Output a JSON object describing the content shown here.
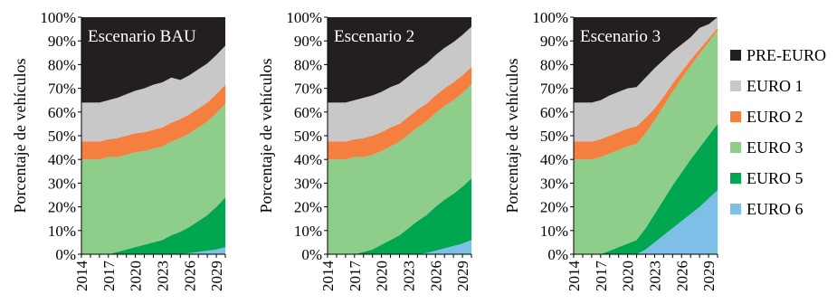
{
  "chart_data": [
    {
      "type": "area",
      "stacked": true,
      "title": "Escenario BAU",
      "ylabel": "Porcentaje de vehículos",
      "ylim": [
        0,
        100
      ],
      "yticks": [
        "0%",
        "10%",
        "20%",
        "30%",
        "40%",
        "50%",
        "60%",
        "70%",
        "80%",
        "90%",
        "100%"
      ],
      "xticks": [
        "2014",
        "2017",
        "2020",
        "2023",
        "2026",
        "2029"
      ],
      "x": [
        2014,
        2015,
        2016,
        2017,
        2018,
        2019,
        2020,
        2021,
        2022,
        2023,
        2024,
        2025,
        2026,
        2027,
        2028,
        2029,
        2030
      ],
      "series": [
        {
          "name": "EURO 6",
          "values": [
            0,
            0,
            0,
            0,
            0,
            0,
            0,
            0,
            0,
            0,
            0,
            0,
            0.5,
            1,
            1.5,
            2,
            3
          ]
        },
        {
          "name": "EURO 5",
          "values": [
            0,
            0,
            0,
            0,
            1,
            2,
            3,
            4,
            5,
            6,
            8,
            9.5,
            11,
            13,
            15,
            18,
            21
          ]
        },
        {
          "name": "EURO 3",
          "values": [
            40,
            40,
            40,
            41,
            40,
            40,
            40,
            39.5,
            39.5,
            39.5,
            39.5,
            39.5,
            39.5,
            39.5,
            39.5,
            39.5,
            39.5
          ]
        },
        {
          "name": "EURO 2",
          "values": [
            7.5,
            7.5,
            7.5,
            7.5,
            8,
            8,
            8,
            8,
            8,
            8,
            8,
            8,
            8,
            8,
            8,
            8,
            8
          ]
        },
        {
          "name": "EURO 1",
          "values": [
            16.5,
            16.5,
            16.5,
            16.5,
            17,
            17.5,
            18,
            18.5,
            19,
            19,
            19,
            16.5,
            16.5,
            16.5,
            16.5,
            16.5,
            16.5
          ]
        },
        {
          "name": "PRE-EURO",
          "values": [
            36,
            36,
            36,
            35,
            34,
            32.5,
            31,
            30,
            28.5,
            27.5,
            25.5,
            26.5,
            24.5,
            22,
            19.5,
            16,
            12
          ]
        }
      ]
    },
    {
      "type": "area",
      "stacked": true,
      "title": "Escenario 2",
      "ylabel": "Porcentaje de vehículos",
      "ylim": [
        0,
        100
      ],
      "yticks": [
        "0%",
        "10%",
        "20%",
        "30%",
        "40%",
        "50%",
        "60%",
        "70%",
        "80%",
        "90%",
        "100%"
      ],
      "xticks": [
        "2014",
        "2017",
        "2020",
        "2023",
        "2026",
        "2029"
      ],
      "x": [
        2014,
        2015,
        2016,
        2017,
        2018,
        2019,
        2020,
        2021,
        2022,
        2023,
        2024,
        2025,
        2026,
        2027,
        2028,
        2029,
        2030
      ],
      "series": [
        {
          "name": "EURO 6",
          "values": [
            0,
            0,
            0,
            0,
            0,
            0,
            0,
            0,
            0,
            0,
            0,
            0.5,
            1.5,
            2.5,
            3.5,
            4.5,
            6
          ]
        },
        {
          "name": "EURO 5",
          "values": [
            0,
            0,
            0,
            0,
            1,
            2,
            4,
            6,
            8,
            11,
            14,
            16,
            18.5,
            20.5,
            22,
            24,
            26
          ]
        },
        {
          "name": "EURO 3",
          "values": [
            40,
            40,
            40,
            41,
            40,
            40,
            39.5,
            39.5,
            39.5,
            39.5,
            39.5,
            39.5,
            39.5,
            39.5,
            39.5,
            39.5,
            39.5
          ]
        },
        {
          "name": "EURO 2",
          "values": [
            7.5,
            7.5,
            7.5,
            7.5,
            8,
            8,
            8,
            8,
            7.5,
            7.5,
            7.5,
            7.5,
            7.5,
            7.5,
            7.5,
            7.5,
            7.5
          ]
        },
        {
          "name": "EURO 1",
          "values": [
            16.5,
            16.5,
            16.5,
            16.5,
            17,
            17,
            17,
            17,
            17,
            17,
            17,
            17,
            17,
            17,
            17,
            17,
            17
          ]
        },
        {
          "name": "PRE-EURO",
          "values": [
            36,
            36,
            36,
            35,
            34,
            33,
            32,
            29.5,
            28,
            25,
            22,
            19.5,
            16,
            13,
            10.5,
            7.5,
            4
          ]
        }
      ]
    },
    {
      "type": "area",
      "stacked": true,
      "title": "Escenario 3",
      "ylabel": "Porcentaje de vehículos",
      "ylim": [
        0,
        100
      ],
      "yticks": [
        "0%",
        "10%",
        "20%",
        "30%",
        "40%",
        "50%",
        "60%",
        "70%",
        "80%",
        "90%",
        "100%"
      ],
      "xticks": [
        "2014",
        "2017",
        "2020",
        "2023",
        "2026",
        "2029"
      ],
      "x": [
        2014,
        2015,
        2016,
        2017,
        2018,
        2019,
        2020,
        2021,
        2022,
        2023,
        2024,
        2025,
        2026,
        2027,
        2028,
        2029,
        2030
      ],
      "series": [
        {
          "name": "EURO 6",
          "values": [
            0,
            0,
            0,
            0,
            0,
            0,
            0,
            0,
            2,
            5,
            8,
            11,
            14,
            17,
            20,
            23.5,
            27
          ]
        },
        {
          "name": "EURO 5",
          "values": [
            0,
            0,
            0,
            0,
            1.5,
            3,
            4.5,
            6,
            9,
            12,
            15,
            18,
            20.5,
            23,
            25,
            26.5,
            28
          ]
        },
        {
          "name": "EURO 3",
          "values": [
            40,
            40,
            40,
            41,
            41,
            41,
            41,
            40.5,
            40,
            39.5,
            39.5,
            39.5,
            39.5,
            39.5,
            39.5,
            39.5,
            39.5
          ]
        },
        {
          "name": "EURO 2",
          "values": [
            7.5,
            7.5,
            7.5,
            7.5,
            7.5,
            7.5,
            7.5,
            7.5,
            6.5,
            5,
            4,
            3.5,
            3,
            2.5,
            2,
            1.5,
            1
          ]
        },
        {
          "name": "EURO 1",
          "values": [
            16.5,
            16.5,
            16.5,
            16.5,
            17,
            17,
            17,
            16.5,
            17,
            17,
            15.5,
            13.5,
            11.5,
            9.5,
            9,
            6,
            4.5
          ]
        },
        {
          "name": "PRE-EURO",
          "values": [
            36,
            36,
            36,
            35,
            33,
            31.5,
            30,
            29.5,
            25.5,
            21.5,
            18,
            14.5,
            11.5,
            8.5,
            4.5,
            3,
            0
          ]
        }
      ]
    }
  ],
  "legend": {
    "placement": "right",
    "entries": [
      {
        "label": "PRE-EURO",
        "color": "#231f20"
      },
      {
        "label": "EURO 1",
        "color": "#c8c8c8"
      },
      {
        "label": "EURO 2",
        "color": "#f47f3e"
      },
      {
        "label": "EURO 3",
        "color": "#8ece8a"
      },
      {
        "label": "EURO 5",
        "color": "#00a650"
      },
      {
        "label": "EURO 6",
        "color": "#7dbfe6"
      }
    ]
  },
  "colors": {
    "PRE-EURO": "#231f20",
    "EURO 1": "#c8c8c8",
    "EURO 2": "#f47f3e",
    "EURO 3": "#8ece8a",
    "EURO 5": "#00a650",
    "EURO 6": "#7dbfe6"
  }
}
